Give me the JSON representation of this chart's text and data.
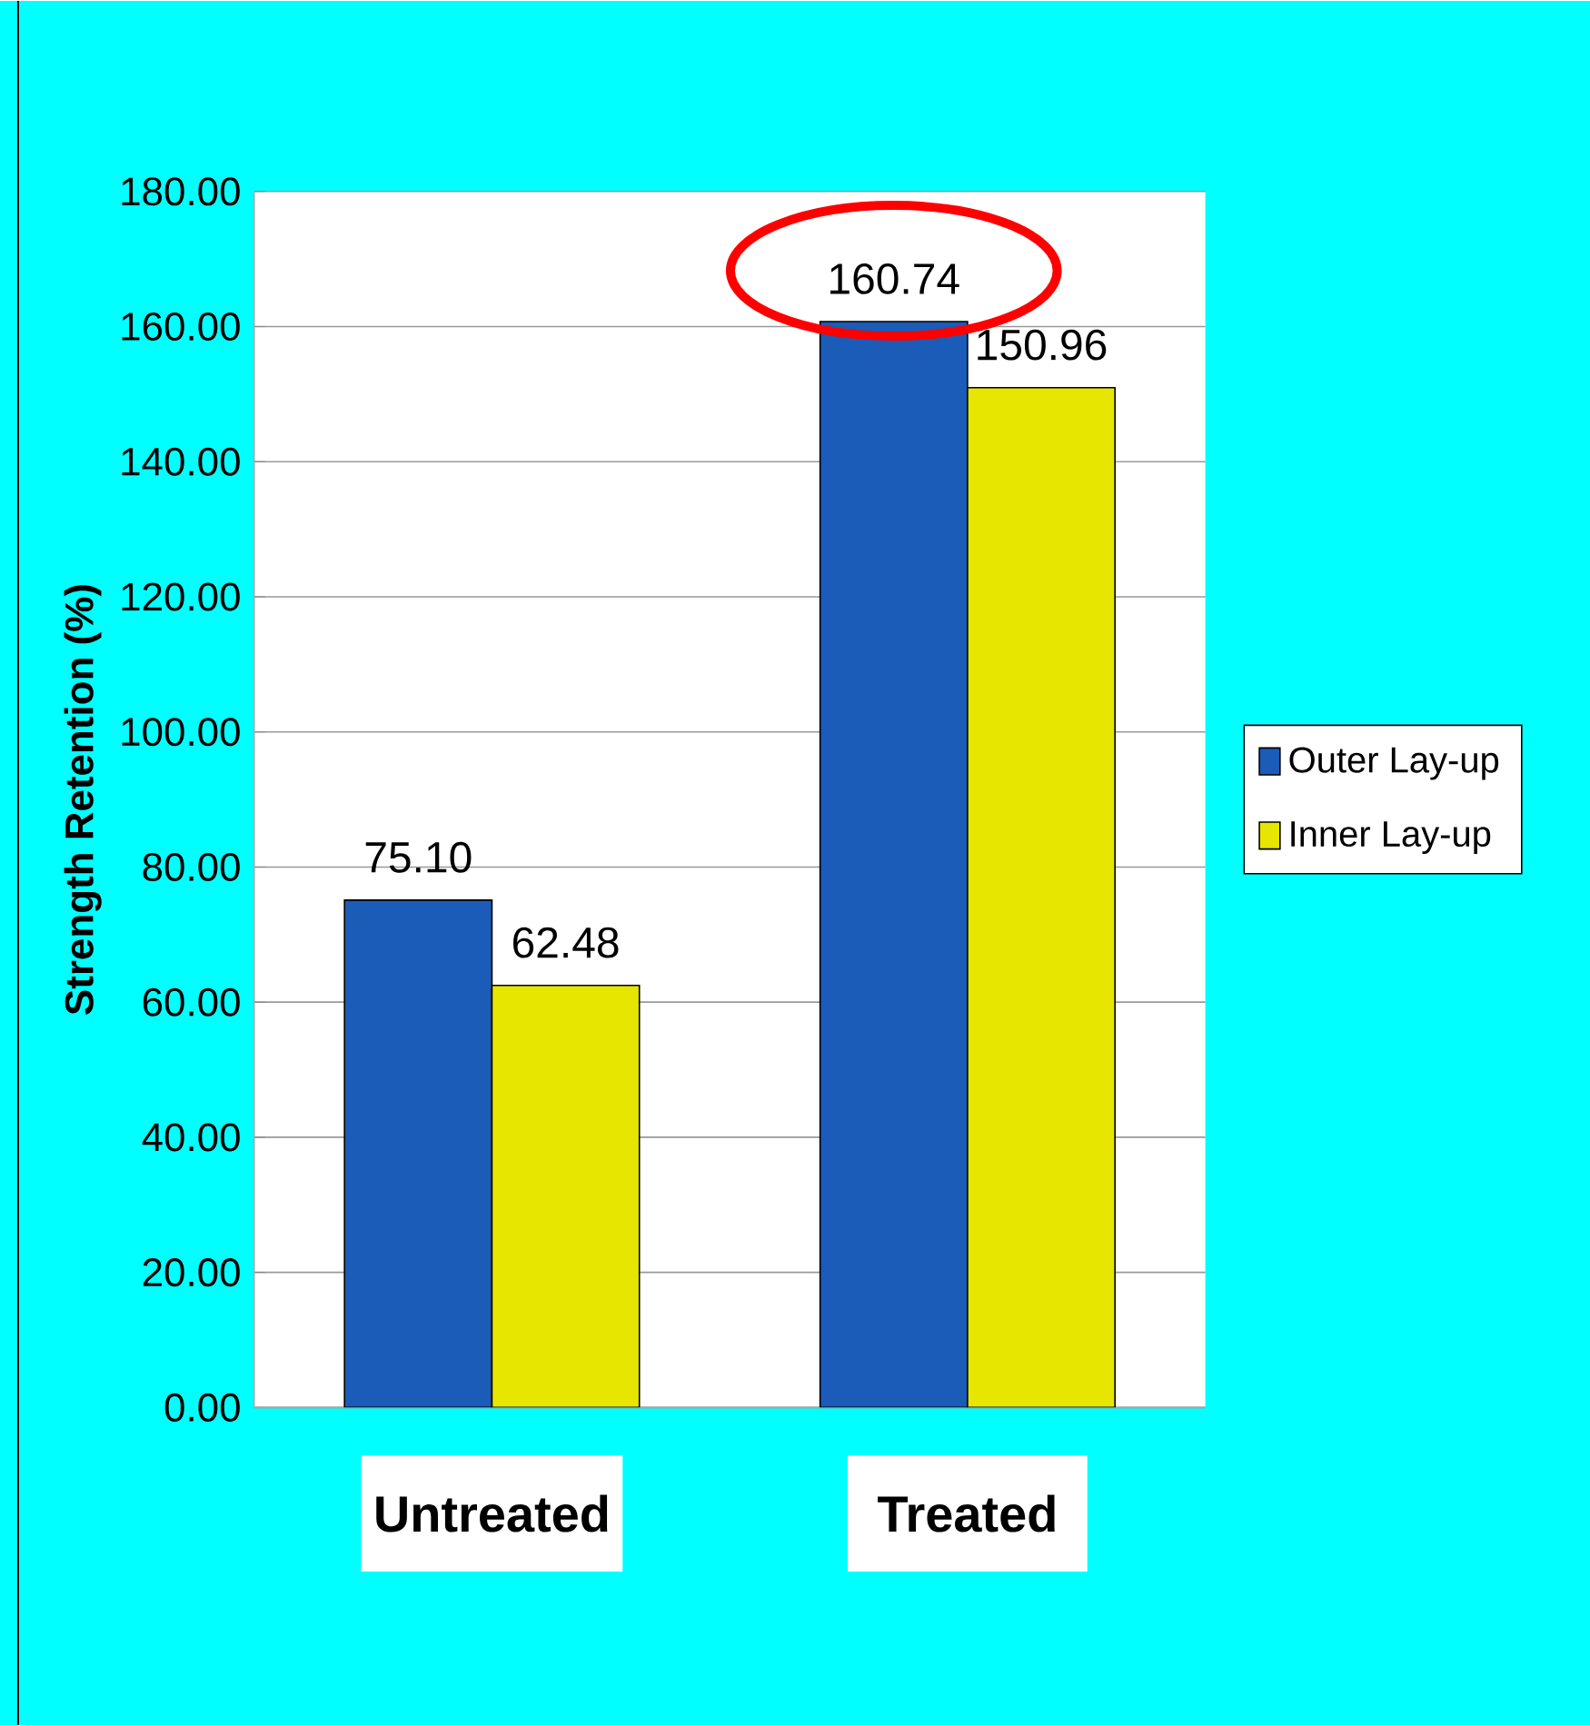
{
  "chart_data": {
    "type": "bar",
    "ylabel": "Strength Retention (%)",
    "categories": [
      "Untreated",
      "Treated"
    ],
    "series": [
      {
        "name": "Outer Lay-up",
        "color": "#1a5cb8",
        "values": [
          75.1,
          160.74
        ],
        "value_labels": [
          "75.10",
          "160.74"
        ]
      },
      {
        "name": "Inner Lay-up",
        "color": "#e6e600",
        "values": [
          62.48,
          150.96
        ],
        "value_labels": [
          "62.48",
          "150.96"
        ]
      }
    ],
    "ylim": [
      0,
      180
    ],
    "yticks": [
      {
        "value": 0,
        "label": "0.00"
      },
      {
        "value": 20,
        "label": "20.00"
      },
      {
        "value": 40,
        "label": "40.00"
      },
      {
        "value": 60,
        "label": "60.00"
      },
      {
        "value": 80,
        "label": "80.00"
      },
      {
        "value": 100,
        "label": "100.00"
      },
      {
        "value": 120,
        "label": "120.00"
      },
      {
        "value": 140,
        "label": "140.00"
      },
      {
        "value": 160,
        "label": "160.00"
      },
      {
        "value": 180,
        "label": "180.00"
      }
    ],
    "grid": "y",
    "legend": "right"
  }
}
